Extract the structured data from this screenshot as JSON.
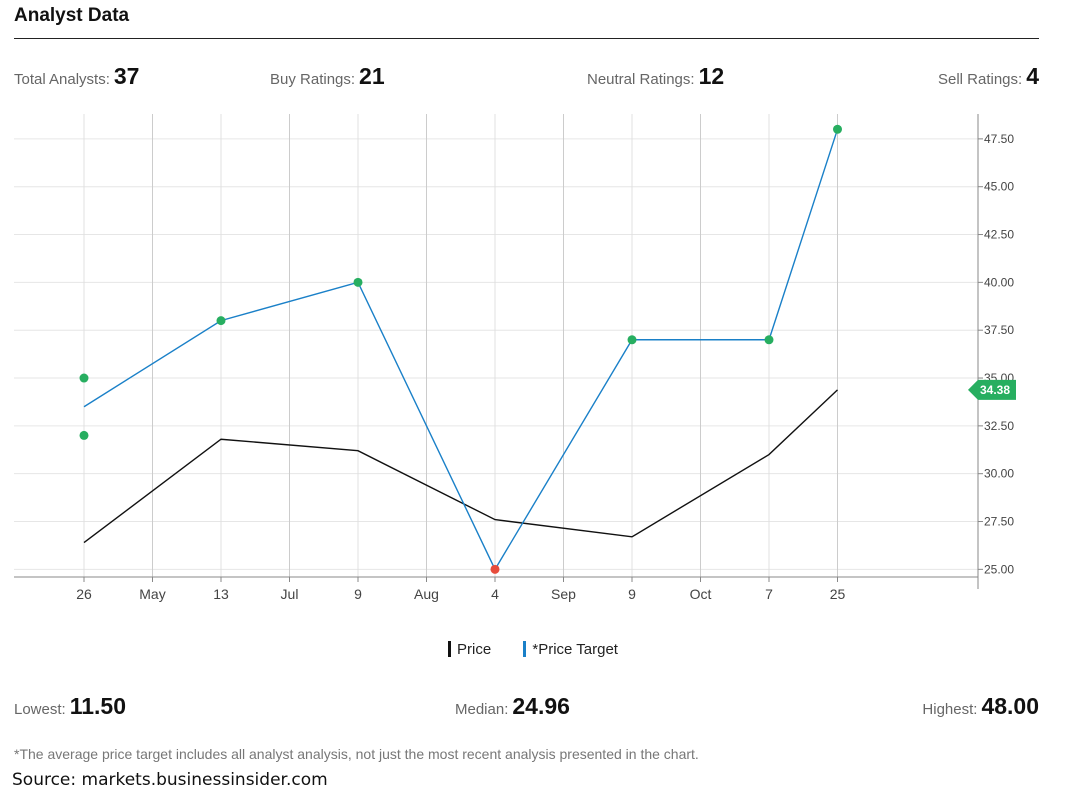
{
  "title": "Analyst Data",
  "stats": {
    "total": {
      "label": "Total Analysts:",
      "value": "37"
    },
    "buy": {
      "label": "Buy Ratings:",
      "value": "21"
    },
    "neutral": {
      "label": "Neutral Ratings:",
      "value": "12"
    },
    "sell": {
      "label": "Sell Ratings:",
      "value": "4"
    }
  },
  "targets": {
    "lowest": {
      "label": "Lowest:",
      "value": "11.50"
    },
    "median": {
      "label": "Median:",
      "value": "24.96"
    },
    "highest": {
      "label": "Highest:",
      "value": "48.00"
    }
  },
  "legend": {
    "price": "Price",
    "target": "*Price Target"
  },
  "footnote": "*The average price target includes all analyst analysis, not just the most recent analysis presented in the chart.",
  "source": "Source: markets.businessinsider.com",
  "colors": {
    "price": "#111111",
    "target": "#1a80c8",
    "buy_marker": "#27ae60",
    "sell_marker": "#e74c3c",
    "grid": "#e6e6e6",
    "vgrid": "#cccccc",
    "current_badge": "#27ae60"
  },
  "chart_data": {
    "type": "line",
    "x_ticks": [
      "26",
      "May",
      "13",
      "Jul",
      "9",
      "Aug",
      "4",
      "Sep",
      "9",
      "Oct",
      "7",
      "25"
    ],
    "y_ticks": [
      "25.00",
      "27.50",
      "30.00",
      "32.50",
      "35.00",
      "37.50",
      "40.00",
      "42.50",
      "45.00",
      "47.50"
    ],
    "ylim": [
      24.6,
      48.8
    ],
    "y_axis_position": "right",
    "grid": true,
    "series": [
      {
        "name": "Price",
        "points": [
          {
            "x": "26",
            "y": 26.4
          },
          {
            "x": "13",
            "y": 31.8
          },
          {
            "x": "9",
            "y": 31.2
          },
          {
            "x": "4",
            "y": 27.6
          },
          {
            "x": "9",
            "y": 26.7
          },
          {
            "x": "7",
            "y": 31.0
          },
          {
            "x": "25",
            "y": 34.38
          }
        ]
      },
      {
        "name": "*Price Target",
        "points": [
          {
            "x": "26",
            "y": 33.5
          },
          {
            "x": "13",
            "y": 38.0
          },
          {
            "x": "9",
            "y": 40.0
          },
          {
            "x": "4",
            "y": 25.0
          },
          {
            "x": "9",
            "y": 37.0
          },
          {
            "x": "7",
            "y": 37.0
          },
          {
            "x": "25",
            "y": 48.0
          }
        ]
      }
    ],
    "rating_markers": [
      {
        "x": "26",
        "y": 35.0,
        "rating": "buy"
      },
      {
        "x": "26",
        "y": 32.0,
        "rating": "buy"
      },
      {
        "x": "13",
        "y": 38.0,
        "rating": "buy"
      },
      {
        "x": "9",
        "y": 40.0,
        "rating": "buy"
      },
      {
        "x": "4",
        "y": 25.0,
        "rating": "sell"
      },
      {
        "x": "9",
        "y": 37.0,
        "rating": "buy"
      },
      {
        "x": "7",
        "y": 37.0,
        "rating": "buy"
      },
      {
        "x": "25",
        "y": 48.0,
        "rating": "buy"
      }
    ],
    "current_price_label": "34.38",
    "current_price": 34.38
  }
}
